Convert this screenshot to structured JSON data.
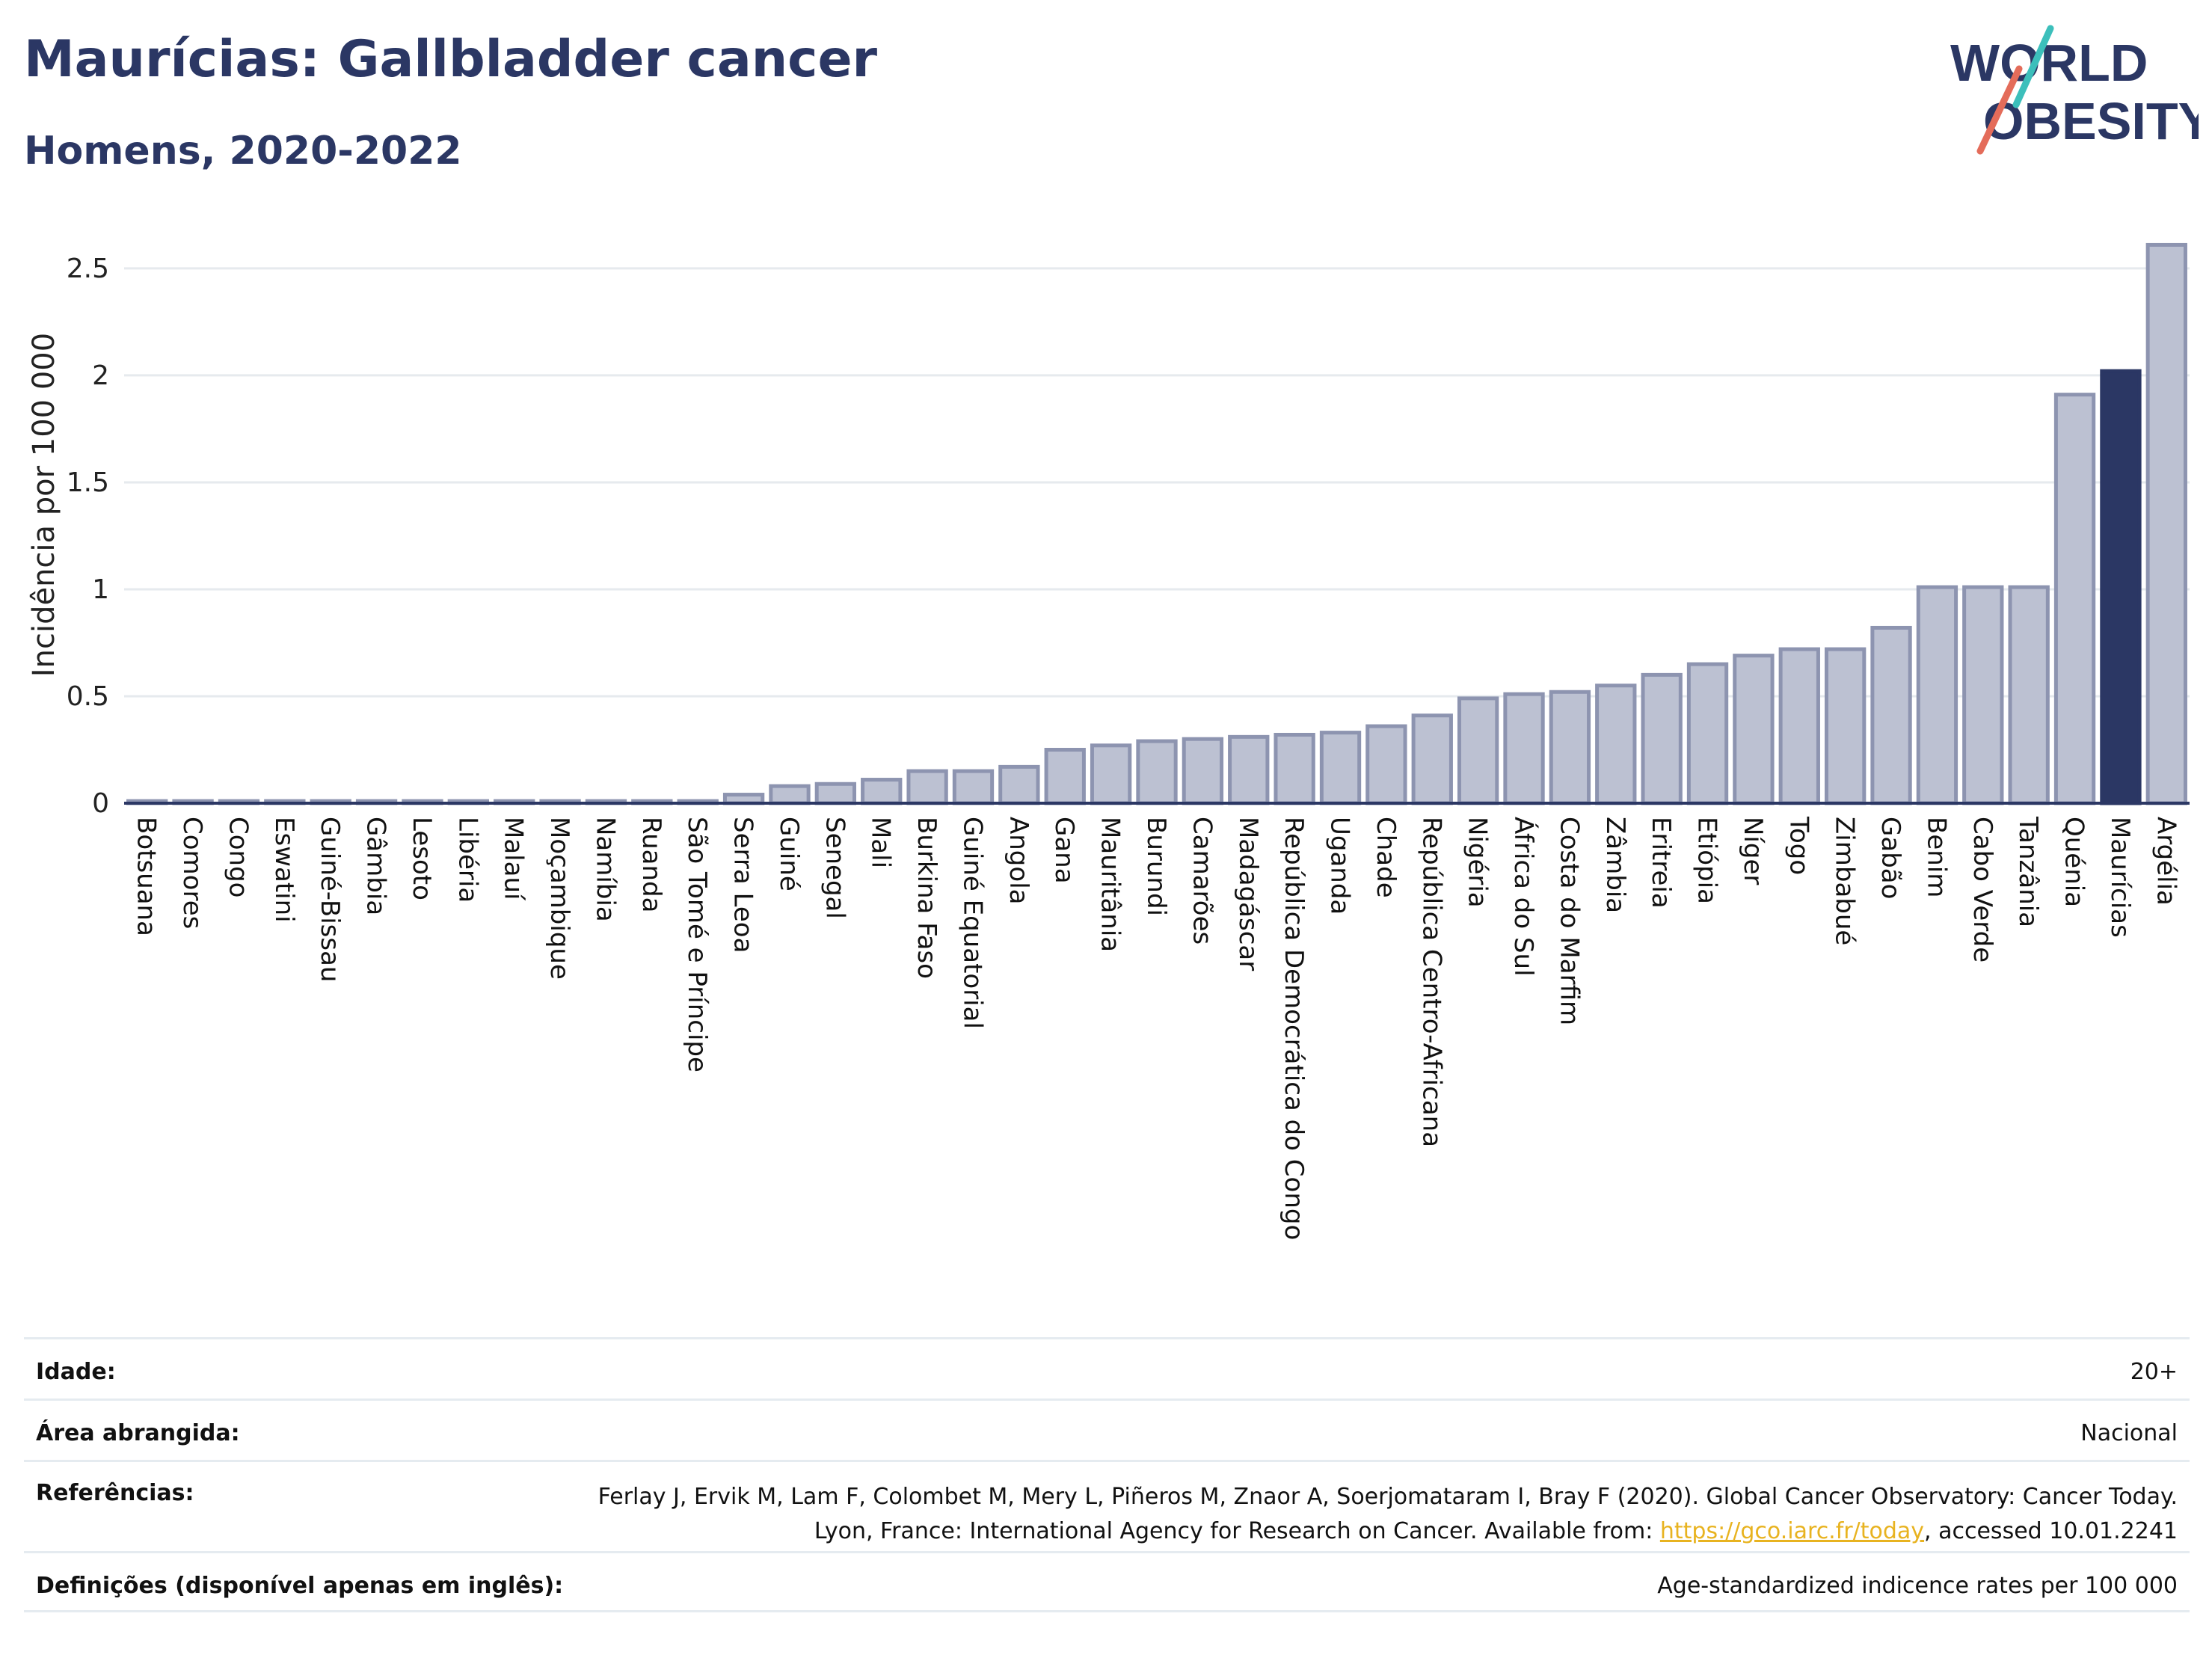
{
  "header": {
    "title": "Maurícias: Gallbladder cancer",
    "subtitle": "Homens, 2020-2022"
  },
  "logo": {
    "line1": "WORLD",
    "line2": "OBESITY"
  },
  "colors": {
    "bar": "#bcc1d2",
    "bar_border": "#8d94b0",
    "highlight": "#2b3764",
    "accent_teal": "#3cbfbb",
    "accent_coral": "#e46c5a",
    "link": "#e8b320"
  },
  "chart_data": {
    "type": "bar",
    "ylabel": "Incidência por 100 000",
    "ylim": [
      0,
      2.65
    ],
    "yticks": [
      0,
      0.5,
      1,
      1.5,
      2,
      2.5
    ],
    "ytick_labels": [
      "0",
      "0.5",
      "1",
      "1.5",
      "2",
      "2.5"
    ],
    "grid": true,
    "highlight": "Maurícias",
    "categories": [
      "Botsuana",
      "Comores",
      "Congo",
      "Eswatini",
      "Guiné-Bissau",
      "Gâmbia",
      "Lesoto",
      "Libéria",
      "Malauí",
      "Moçambique",
      "Namíbia",
      "Ruanda",
      "São Tomé e Príncipe",
      "Serra Leoa",
      "Guiné",
      "Senegal",
      "Mali",
      "Burkina Faso",
      "Guiné Equatorial",
      "Angola",
      "Gana",
      "Mauritânia",
      "Burundi",
      "Camarões",
      "Madagáscar",
      "República Democrática do Congo",
      "Uganda",
      "Chade",
      "República Centro-Africana",
      "Nigéria",
      "África do Sul",
      "Costa do Marfim",
      "Zâmbia",
      "Eritreia",
      "Etiópia",
      "Níger",
      "Togo",
      "Zimbabué",
      "Gabão",
      "Benim",
      "Cabo Verde",
      "Tanzânia",
      "Quénia",
      "Maurícias",
      "Argélia"
    ],
    "values": [
      0.01,
      0.01,
      0.01,
      0.01,
      0.01,
      0.01,
      0.01,
      0.01,
      0.01,
      0.01,
      0.01,
      0.01,
      0.01,
      0.04,
      0.08,
      0.09,
      0.11,
      0.15,
      0.15,
      0.17,
      0.25,
      0.27,
      0.29,
      0.3,
      0.31,
      0.32,
      0.33,
      0.36,
      0.41,
      0.49,
      0.51,
      0.52,
      0.55,
      0.6,
      0.65,
      0.69,
      0.72,
      0.72,
      0.82,
      1.01,
      1.01,
      1.01,
      1.91,
      2.02,
      2.61
    ]
  },
  "info_table": {
    "age_label": "Idade:",
    "age_value": "20+",
    "area_label": "Área abrangida:",
    "area_value": "Nacional",
    "ref_label": "Referências:",
    "ref_text_1": "Ferlay J, Ervik M, Lam F, Colombet M, Mery L, Piñeros M, Znaor A, Soerjomataram I, Bray F (2020). Global Cancer Observatory: Cancer Today. Lyon, France: International Agency for Research on Cancer. Available from: ",
    "ref_link": "https://gco.iarc.fr/today",
    "ref_text_2": ", accessed 10.01.2241",
    "def_label": "Definições (disponível apenas em inglês):",
    "def_value": "Age-standardized indicence rates per 100 000"
  }
}
